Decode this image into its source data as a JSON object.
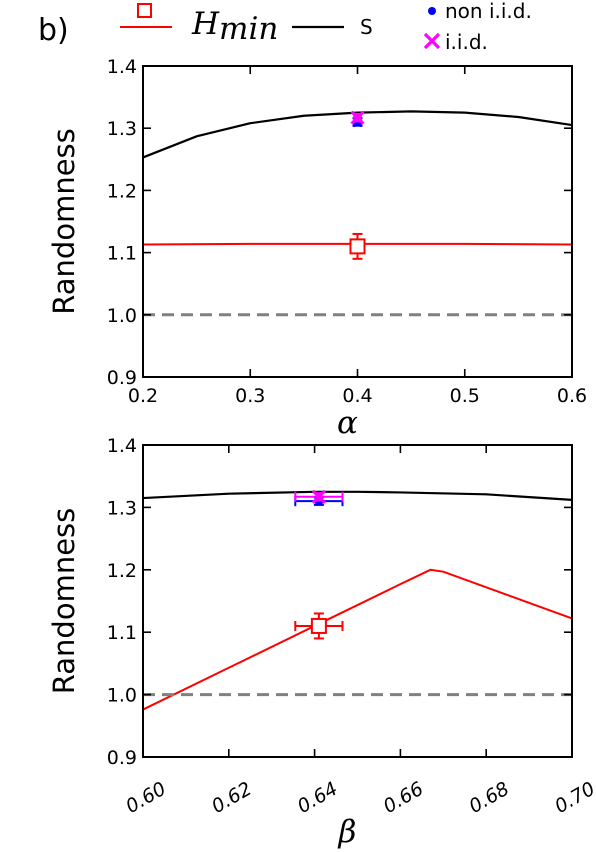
{
  "panel_label": "b)",
  "legend": {
    "hmin_main": "H",
    "hmin_sub": "min",
    "s": "S",
    "non_iid": "non i.i.d.",
    "iid": "i.i.d."
  },
  "colors": {
    "hmin": "#ff0000",
    "s": "#000000",
    "non_iid": "#0000ff",
    "iid": "#ff00ff",
    "bound": "#808080"
  },
  "chart_data": [
    {
      "type": "line",
      "xlabel": "α",
      "ylabel": "Randomness",
      "xlim": [
        0.2,
        0.6
      ],
      "ylim": [
        0.9,
        1.4
      ],
      "x_ticks": [
        "0.2",
        "0.3",
        "0.4",
        "0.5",
        "0.6"
      ],
      "y_ticks": [
        "0.9",
        "1.0",
        "1.1",
        "1.2",
        "1.3",
        "1.4"
      ],
      "x_tick_values": [
        0.2,
        0.3,
        0.4,
        0.5,
        0.6
      ],
      "y_tick_values": [
        0.9,
        1.0,
        1.1,
        1.2,
        1.3,
        1.4
      ],
      "series": [
        {
          "name": "S",
          "x": [
            0.2,
            0.25,
            0.3,
            0.35,
            0.4,
            0.45,
            0.5,
            0.55,
            0.6
          ],
          "y": [
            1.253,
            1.287,
            1.308,
            1.32,
            1.325,
            1.327,
            1.325,
            1.318,
            1.305
          ]
        },
        {
          "name": "H",
          "x": [
            0.2,
            0.3,
            0.4,
            0.5,
            0.6
          ],
          "y": [
            1.113,
            1.114,
            1.114,
            1.114,
            1.113
          ]
        },
        {
          "name": "bound",
          "x": [
            0.2,
            0.6
          ],
          "y": [
            1.0,
            1.0
          ]
        }
      ],
      "points": [
        {
          "series": "non i.i.d.",
          "x": 0.4,
          "y": 1.31,
          "xerr": 0.003,
          "yerr": 0.006
        },
        {
          "series": "i.i.d.",
          "x": 0.4,
          "y": 1.317,
          "xerr": 0.003,
          "yerr": 0.006
        },
        {
          "series": "H",
          "x": 0.4,
          "y": 1.11,
          "xerr": 0.004,
          "yerr": 0.02
        }
      ]
    },
    {
      "type": "line",
      "xlabel": "β",
      "ylabel": "Randomness",
      "xlim": [
        0.6,
        0.7
      ],
      "ylim": [
        0.9,
        1.4
      ],
      "x_ticks": [
        "0.60",
        "0.62",
        "0.64",
        "0.66",
        "0.68",
        "0.70"
      ],
      "y_ticks": [
        "0.9",
        "1.0",
        "1.1",
        "1.2",
        "1.3",
        "1.4"
      ],
      "x_tick_values": [
        0.6,
        0.62,
        0.64,
        0.66,
        0.68,
        0.7
      ],
      "y_tick_values": [
        0.9,
        1.0,
        1.1,
        1.2,
        1.3,
        1.4
      ],
      "series": [
        {
          "name": "S",
          "x": [
            0.6,
            0.62,
            0.64,
            0.65,
            0.66,
            0.68,
            0.7
          ],
          "y": [
            1.315,
            1.322,
            1.325,
            1.325,
            1.324,
            1.321,
            1.312
          ]
        },
        {
          "name": "H",
          "x": [
            0.6,
            0.62,
            0.64,
            0.66,
            0.667,
            0.67,
            0.7
          ],
          "y": [
            0.976,
            1.043,
            1.11,
            1.177,
            1.2,
            1.197,
            1.122
          ]
        },
        {
          "name": "bound",
          "x": [
            0.6,
            0.7
          ],
          "y": [
            1.0,
            1.0
          ]
        }
      ],
      "points": [
        {
          "series": "non i.i.d.",
          "x": 0.641,
          "y": 1.31,
          "xerr": 0.0055,
          "yerr": 0.006
        },
        {
          "series": "i.i.d.",
          "x": 0.641,
          "y": 1.317,
          "xerr": 0.0055,
          "yerr": 0.006
        },
        {
          "series": "H",
          "x": 0.641,
          "y": 1.11,
          "xerr": 0.0055,
          "yerr": 0.02
        }
      ]
    }
  ]
}
